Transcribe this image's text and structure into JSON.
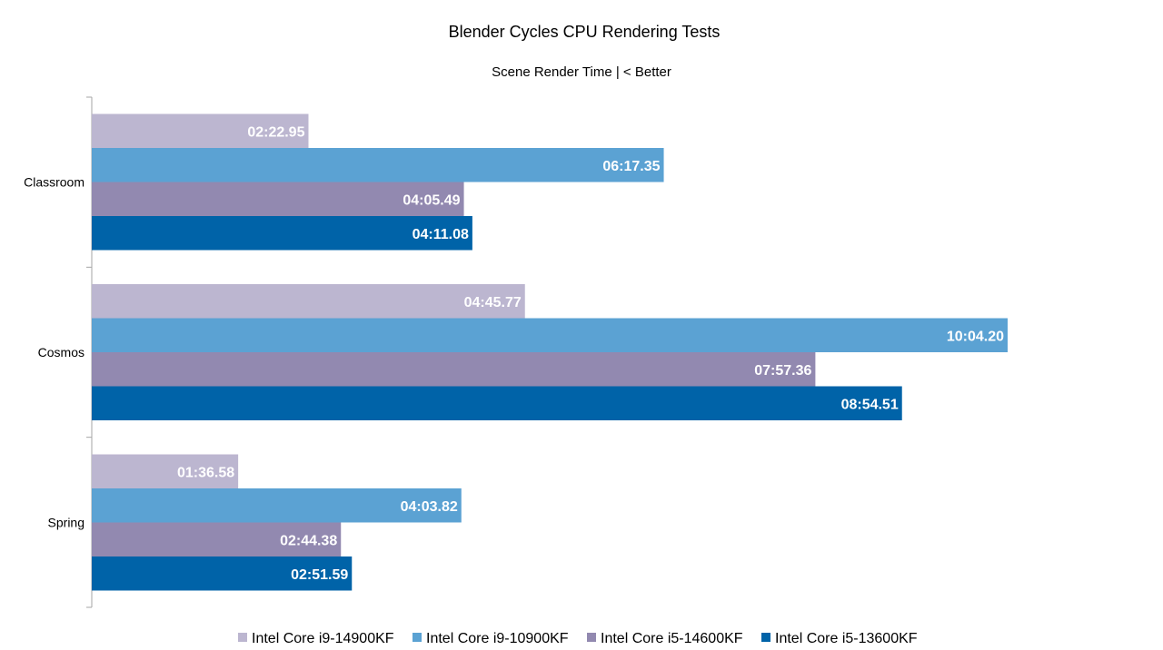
{
  "chart_data": {
    "type": "bar",
    "orientation": "horizontal",
    "title": "Blender Cycles CPU Rendering Tests",
    "subtitle": "Scene Render Time | < Better",
    "categories": [
      "Classroom",
      "Cosmos",
      "Spring"
    ],
    "series": [
      {
        "name": "Intel Core i9-14900KF",
        "color": "#bcb6d0",
        "values": [
          142.95,
          285.77,
          96.58
        ],
        "labels": [
          "02:22.95",
          "04:45.77",
          "01:36.58"
        ]
      },
      {
        "name": "Intel Core i9-10900KF",
        "color": "#5ba2d3",
        "values": [
          377.35,
          604.2,
          243.82
        ],
        "labels": [
          "06:17.35",
          "10:04.20",
          "04:03.82"
        ]
      },
      {
        "name": "Intel Core i5-14600KF",
        "color": "#9289b0",
        "values": [
          245.49,
          477.36,
          164.38
        ],
        "labels": [
          "04:05.49",
          "07:57.36",
          "02:44.38"
        ]
      },
      {
        "name": "Intel Core i5-13600KF",
        "color": "#0063a8",
        "values": [
          251.08,
          534.51,
          171.59
        ],
        "labels": [
          "04:11.08",
          "08:54.51",
          "02:51.59"
        ]
      }
    ],
    "xlim": [
      0,
      604.2
    ],
    "grid": false,
    "legend_position": "bottom"
  }
}
